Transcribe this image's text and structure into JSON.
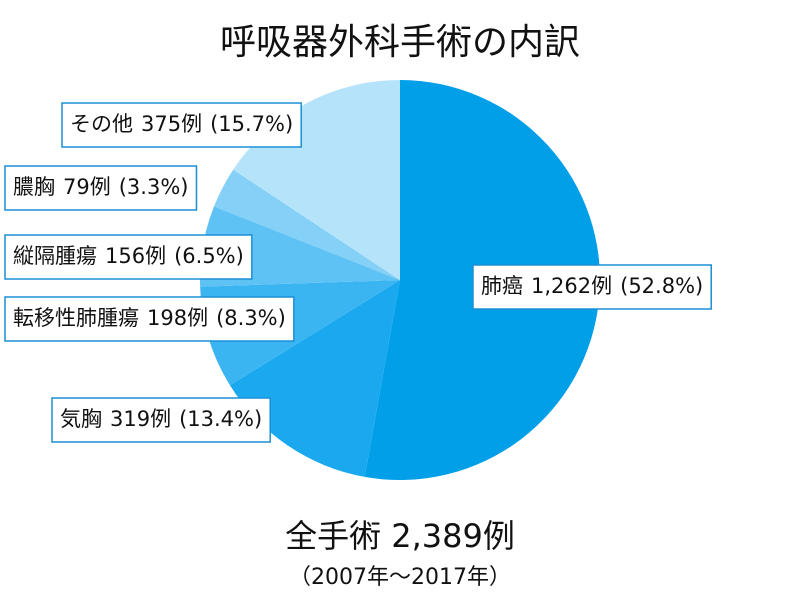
{
  "chart_data": {
    "type": "pie",
    "title": "呼吸器外科手術の内訳",
    "categories": [
      "肺癌",
      "気胸",
      "転移性肺腫瘍",
      "縦隔腫瘍",
      "膿胸",
      "その他"
    ],
    "values": [
      1262,
      319,
      198,
      156,
      79,
      375
    ],
    "value_labels": [
      "1,262例",
      "319例",
      "198例",
      "156例",
      "79例",
      "375例"
    ],
    "percent_labels": [
      "(52.8%)",
      "(13.4%)",
      "(8.3%)",
      "(6.5%)",
      "(3.3%)",
      "(15.7%)"
    ],
    "colors": [
      "#009fe8",
      "#1aa8ee",
      "#3bb5f2",
      "#5ec2f5",
      "#85d0f7",
      "#b5e4fa"
    ],
    "total_label": "全手術 2,389例",
    "period": "（2007年〜2017年）"
  }
}
